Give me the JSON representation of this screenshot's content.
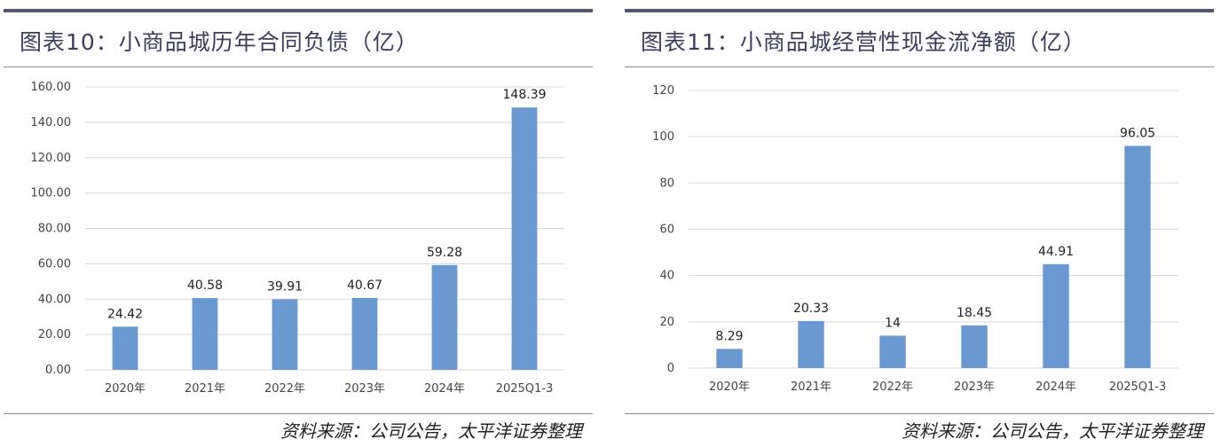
{
  "panels": [
    {
      "title": "图表10：小商品城历年合同负债（亿）",
      "source": "资料来源：公司公告，太平洋证券整理",
      "chart_data": {
        "type": "bar",
        "categories": [
          "2020年",
          "2021年",
          "2022年",
          "2023年",
          "2024年",
          "2025Q1-3"
        ],
        "values": [
          24.42,
          40.58,
          39.91,
          40.67,
          59.28,
          148.39
        ],
        "value_labels": [
          "24.42",
          "40.58",
          "39.91",
          "40.67",
          "59.28",
          "148.39"
        ],
        "ylim": [
          0,
          160
        ],
        "yticks": [
          0,
          20,
          40,
          60,
          80,
          100,
          120,
          140,
          160
        ],
        "ytick_labels": [
          "0.00",
          "20.00",
          "40.00",
          "60.00",
          "80.00",
          "100.00",
          "120.00",
          "140.00",
          "160.00"
        ],
        "grid": true,
        "bar_color": "#6a98d0"
      }
    },
    {
      "title": "图表11：小商品城经营性现金流净额（亿）",
      "source": "资料来源：公司公告，太平洋证券整理",
      "chart_data": {
        "type": "bar",
        "categories": [
          "2020年",
          "2021年",
          "2022年",
          "2023年",
          "2024年",
          "2025Q1-3"
        ],
        "values": [
          8.29,
          20.33,
          14,
          18.45,
          44.91,
          96.05
        ],
        "value_labels": [
          "8.29",
          "20.33",
          "14",
          "18.45",
          "44.91",
          "96.05"
        ],
        "ylim": [
          0,
          120
        ],
        "yticks": [
          0,
          20,
          40,
          60,
          80,
          100,
          120
        ],
        "ytick_labels": [
          "0",
          "20",
          "40",
          "60",
          "80",
          "100",
          "120"
        ],
        "grid": true,
        "bar_color": "#6a98d0"
      }
    }
  ]
}
